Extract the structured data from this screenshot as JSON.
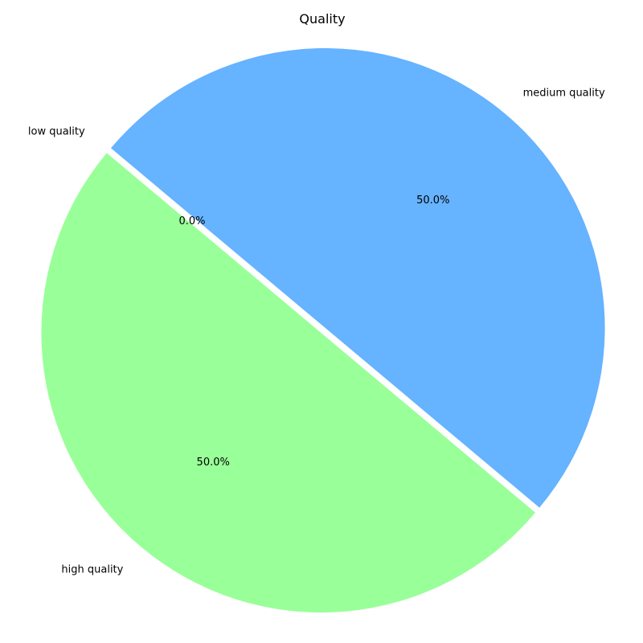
{
  "chart_data": {
    "type": "pie",
    "title": "Quality",
    "slices": [
      {
        "label": "low quality",
        "value": 0,
        "percent_label": "0.0%",
        "color": "#ff9999"
      },
      {
        "label": "high quality",
        "value": 50,
        "percent_label": "50.0%",
        "color": "#99ff99"
      },
      {
        "label": "medium quality",
        "value": 50,
        "percent_label": "50.0%",
        "color": "#66b3ff"
      }
    ],
    "start_angle_deg": 140,
    "direction": "counterclockwise",
    "explode_all": true,
    "legend": "none"
  }
}
